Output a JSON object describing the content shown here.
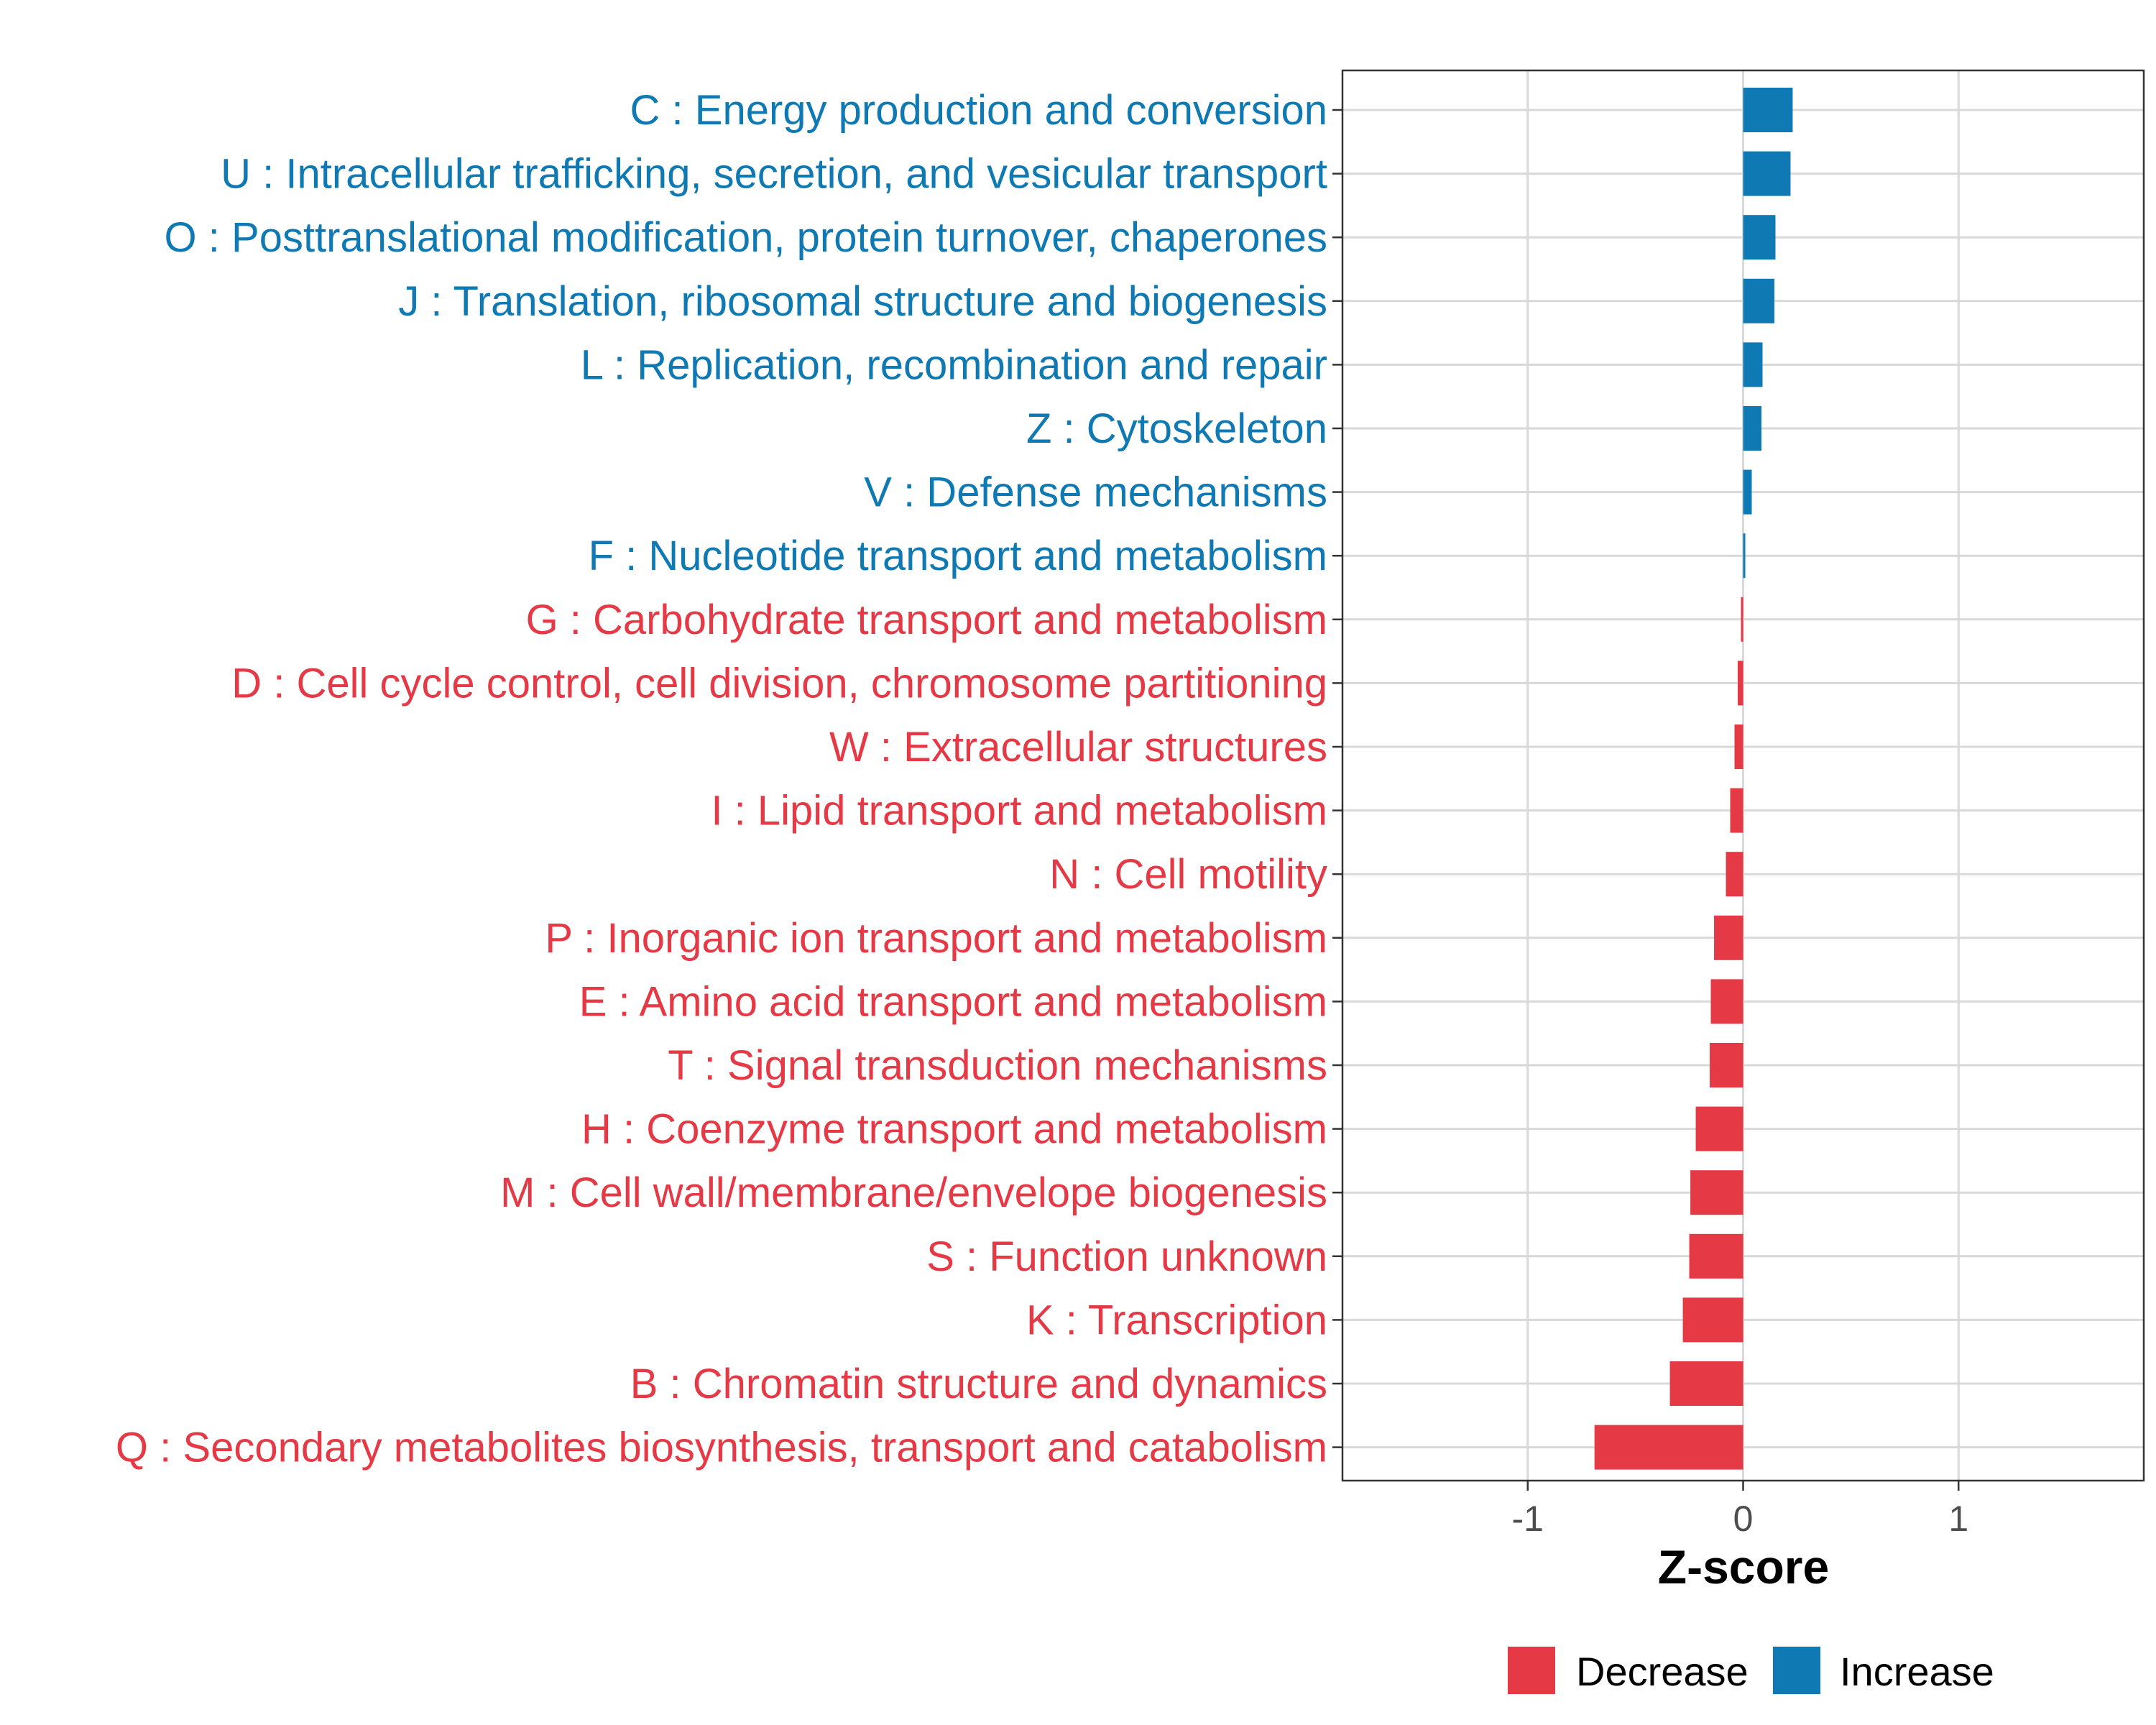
{
  "chart_data": {
    "type": "bar",
    "orientation": "horizontal",
    "title": "",
    "xlabel": "Z-score",
    "ylabel": "",
    "xlim": [
      -1.86,
      1.86
    ],
    "xticks": [
      -1,
      0,
      1
    ],
    "xtick_labels": [
      "-1",
      "0",
      "1"
    ],
    "grid": true,
    "categories": [
      "C : Energy production and conversion",
      "U : Intracellular trafficking, secretion, and vesicular transport",
      "O : Posttranslational modification, protein turnover, chaperones",
      "J : Translation, ribosomal structure and biogenesis",
      "L : Replication, recombination and repair",
      "Z : Cytoskeleton",
      "V : Defense mechanisms",
      "F : Nucleotide transport and metabolism",
      "G : Carbohydrate transport and metabolism",
      "D : Cell cycle control, cell division, chromosome partitioning",
      "W : Extracellular structures",
      "I : Lipid transport and metabolism",
      "N : Cell motility",
      "P : Inorganic ion transport and metabolism",
      "E : Amino acid transport and metabolism",
      "T : Signal transduction mechanisms",
      "H : Coenzyme transport and metabolism",
      "M : Cell wall/membrane/envelope biogenesis",
      "S : Function unknown",
      "K : Transcription",
      "B : Chromatin structure and dynamics",
      "Q : Secondary metabolites biosynthesis, transport and catabolism"
    ],
    "values": [
      0.23,
      0.22,
      0.15,
      0.145,
      0.09,
      0.085,
      0.04,
      0.01,
      -0.01,
      -0.025,
      -0.04,
      -0.06,
      -0.08,
      -0.135,
      -0.15,
      -0.155,
      -0.22,
      -0.245,
      -0.25,
      -0.28,
      -0.34,
      -0.69
    ],
    "legend": {
      "position": "bottom",
      "entries": [
        {
          "label": "Decrease",
          "color": "#E63946"
        },
        {
          "label": "Increase",
          "color": "#0E79B2"
        }
      ]
    },
    "colors": {
      "increase": "#0E79B2",
      "decrease": "#E63946",
      "grid": "#d9d9d9",
      "panel_border": "#333333"
    }
  }
}
